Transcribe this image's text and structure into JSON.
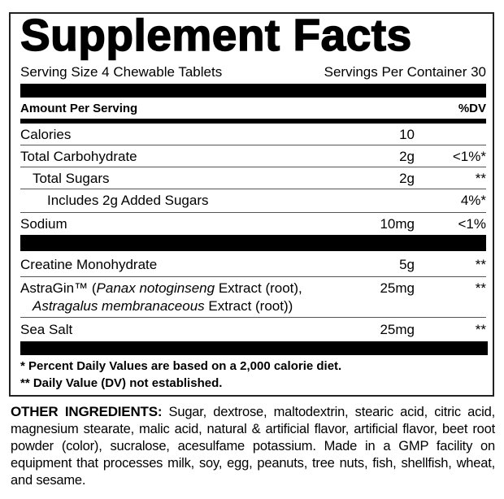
{
  "title": "Supplement Facts",
  "serving_size": "Serving Size 4 Chewable Tablets",
  "servings_per_container": "Servings Per Container 30",
  "header": {
    "amount": "Amount Per Serving",
    "dv": "%DV"
  },
  "rows": [
    {
      "name": "Calories",
      "amount": "10",
      "dv": ""
    },
    {
      "name": "Total Carbohydrate",
      "amount": "2g",
      "dv": "<1%*"
    },
    {
      "name": "Total Sugars",
      "amount": "2g",
      "dv": "**"
    },
    {
      "name": "Includes 2g Added Sugars",
      "amount": "",
      "dv": "4%*"
    },
    {
      "name": "Sodium",
      "amount": "10mg",
      "dv": "<1%"
    }
  ],
  "ingredients": [
    {
      "name": "Creatine Monohydrate",
      "amount": "5g",
      "dv": "**"
    },
    {
      "name_a": "AstraGin™ (",
      "name_b": "Panax notoginseng",
      "name_c": " Extract (root),",
      "name_d": "Astragalus membranaceous",
      "name_e": " Extract (root))",
      "amount": "25mg",
      "dv": "**"
    },
    {
      "name": "Sea Salt",
      "amount": "25mg",
      "dv": "**"
    }
  ],
  "footnotes": [
    "* Percent Daily Values are based on a 2,000 calorie diet.",
    "** Daily Value (DV) not established."
  ],
  "other_ingredients": {
    "label": "OTHER INGREDIENTS:",
    "text": " Sugar, dextrose, maltodextrin, stearic acid, citric acid, magnesium stearate, malic acid, natural & artificial flavor, artificial flavor, beet root powder (color), sucralose, acesulfame potassium. Made in a GMP facility on equipment that processes milk, soy, egg, peanuts, tree nuts, fish, shellfish, wheat, and sesame."
  }
}
